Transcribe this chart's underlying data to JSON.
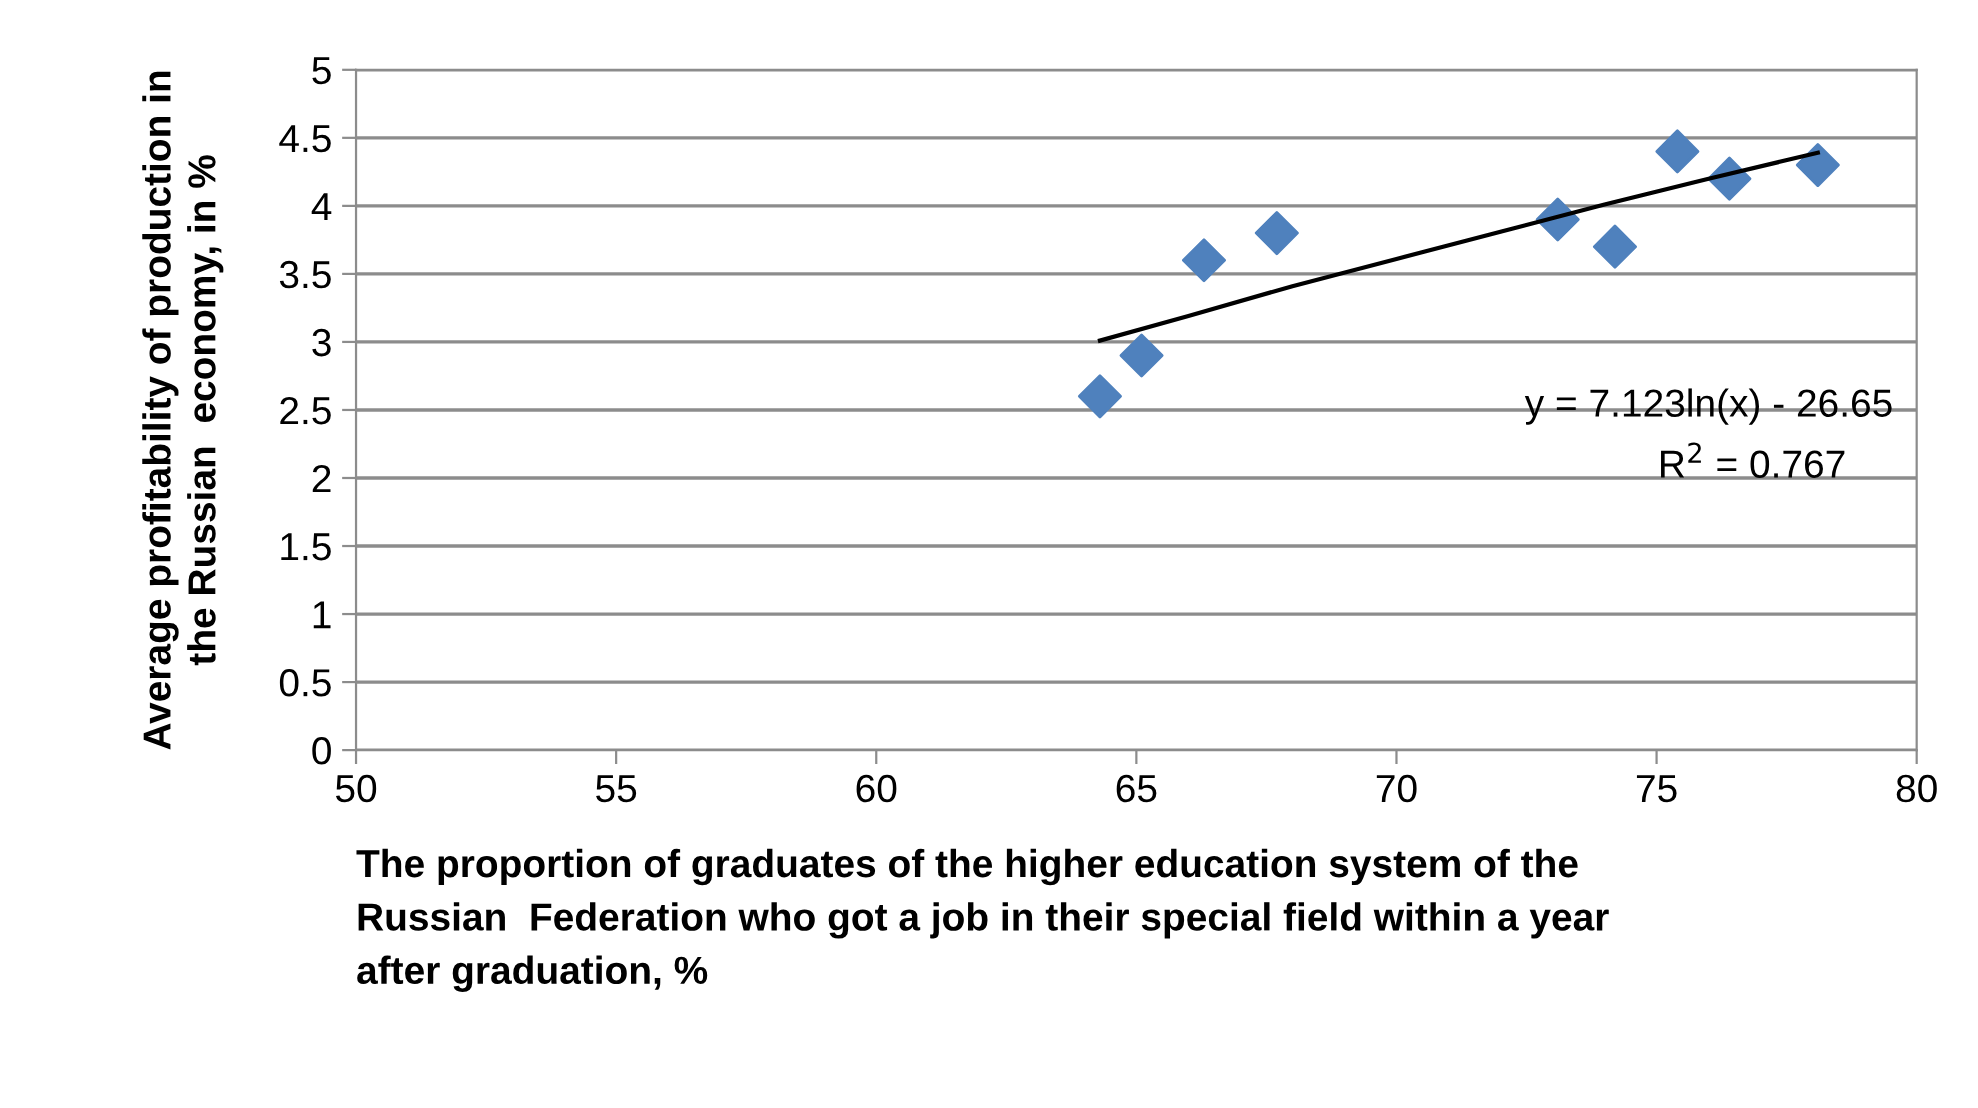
{
  "chart_data": {
    "type": "scatter",
    "xlabel": "The proportion of graduates of the higher education system of the\nRussian  Federation who got a job in their special field within a year\nafter graduation, %",
    "ylabel": "Average profitability of production in\nthe Russian  economy, in %",
    "series": [
      {
        "color": "#4f81bd",
        "marker": "diamond",
        "x": [
          64.3,
          65.1,
          66.3,
          67.7,
          73.1,
          74.2,
          75.4,
          76.4,
          78.1
        ],
        "values": [
          2.6,
          2.9,
          3.6,
          3.8,
          3.9,
          3.7,
          4.4,
          4.2,
          4.3
        ]
      },
      {
        "type": "line",
        "color": "#000000",
        "marker": "none",
        "line_style": "solid",
        "x": [
          64.3,
          66,
          68,
          70,
          72,
          74,
          76,
          78.1
        ],
        "values": [
          3.01,
          3.19,
          3.41,
          3.61,
          3.81,
          4.01,
          4.2,
          4.39
        ]
      }
    ],
    "annotations": [
      "y = 7.123ln(x) - 26.65",
      "R$^{2}$ = 0.767"
    ],
    "xlim": [
      50,
      80
    ],
    "xticks": [
      50,
      55,
      60,
      65,
      70,
      75,
      80
    ],
    "ylim": [
      0,
      5
    ],
    "yticks": [
      0,
      0.5,
      1,
      1.5,
      2,
      2.5,
      3,
      3.5,
      4,
      4.5,
      5
    ],
    "grid": "y"
  }
}
